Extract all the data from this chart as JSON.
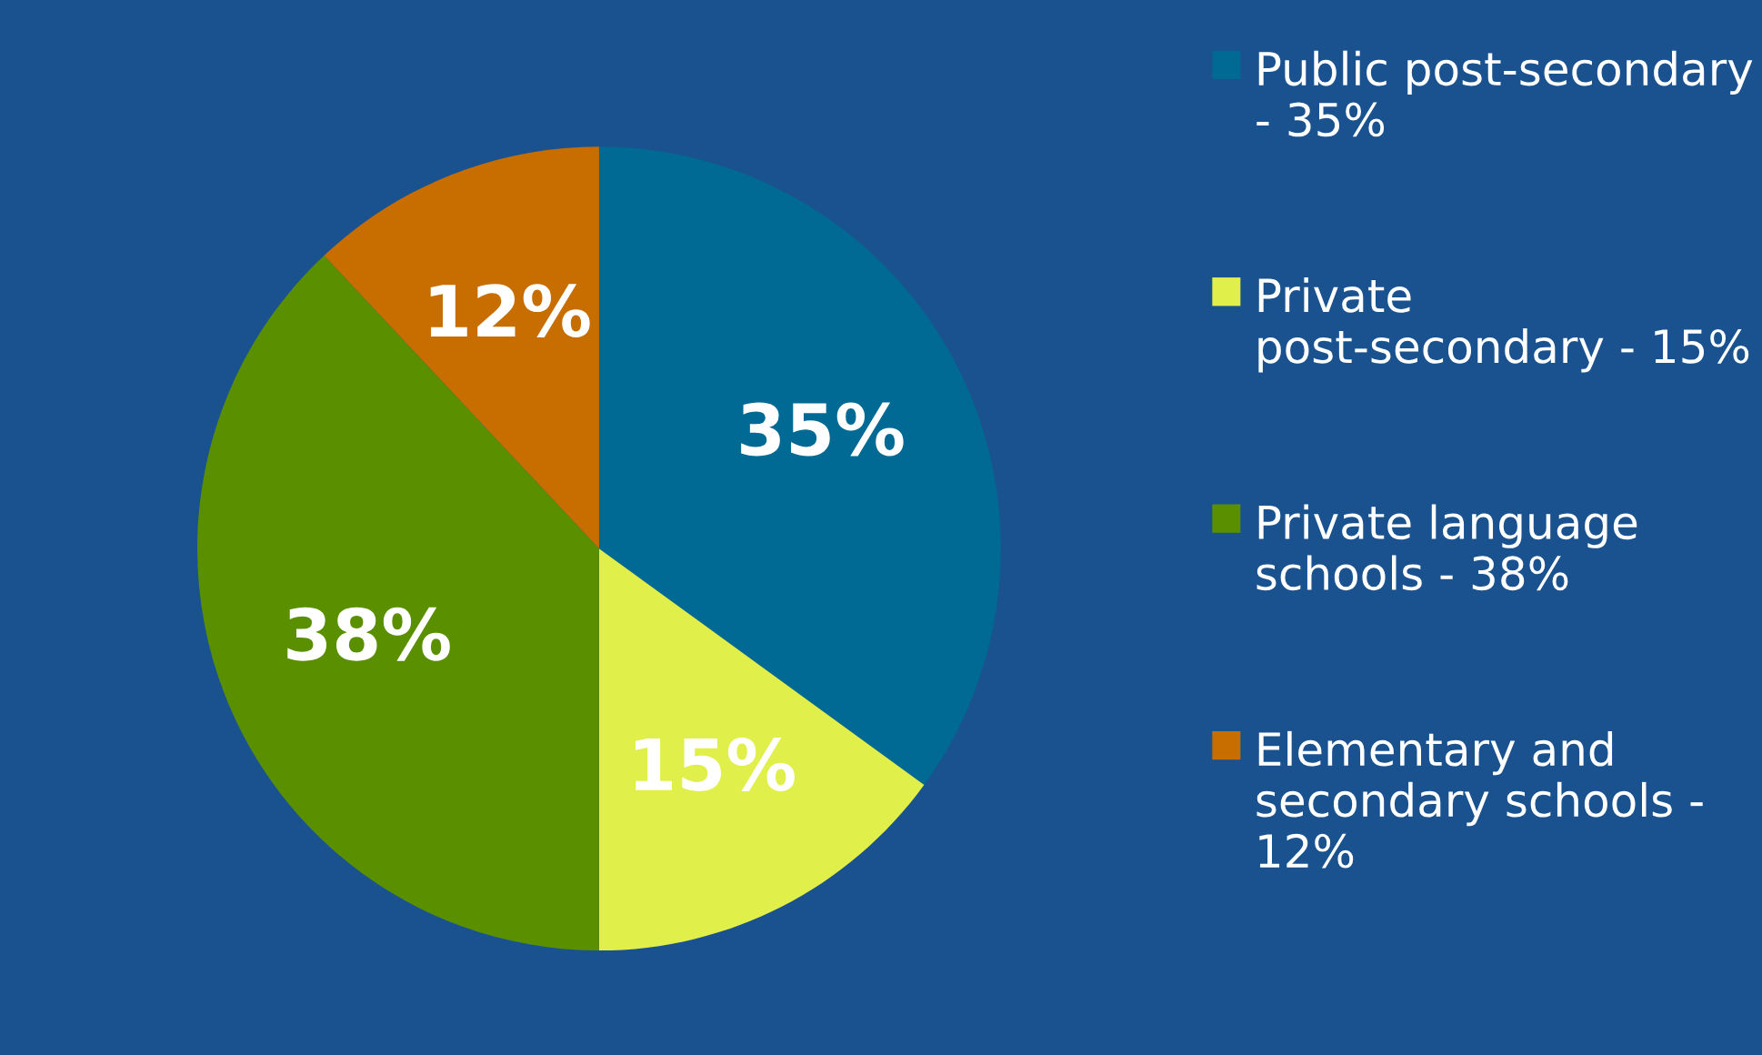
{
  "chart_data": {
    "type": "pie",
    "categories": [
      "Public post-secondary - 35%",
      "Private post-secondary - 15%",
      "Private language schools - 38%",
      "Elementary and secondary schools - 12%"
    ],
    "values": [
      35,
      15,
      38,
      12
    ],
    "value_labels": [
      "35%",
      "15%",
      "38%",
      "12%"
    ],
    "colors": [
      "#006a94",
      "#e0ef4a",
      "#5a8f00",
      "#c86e00"
    ],
    "legend": "right"
  }
}
